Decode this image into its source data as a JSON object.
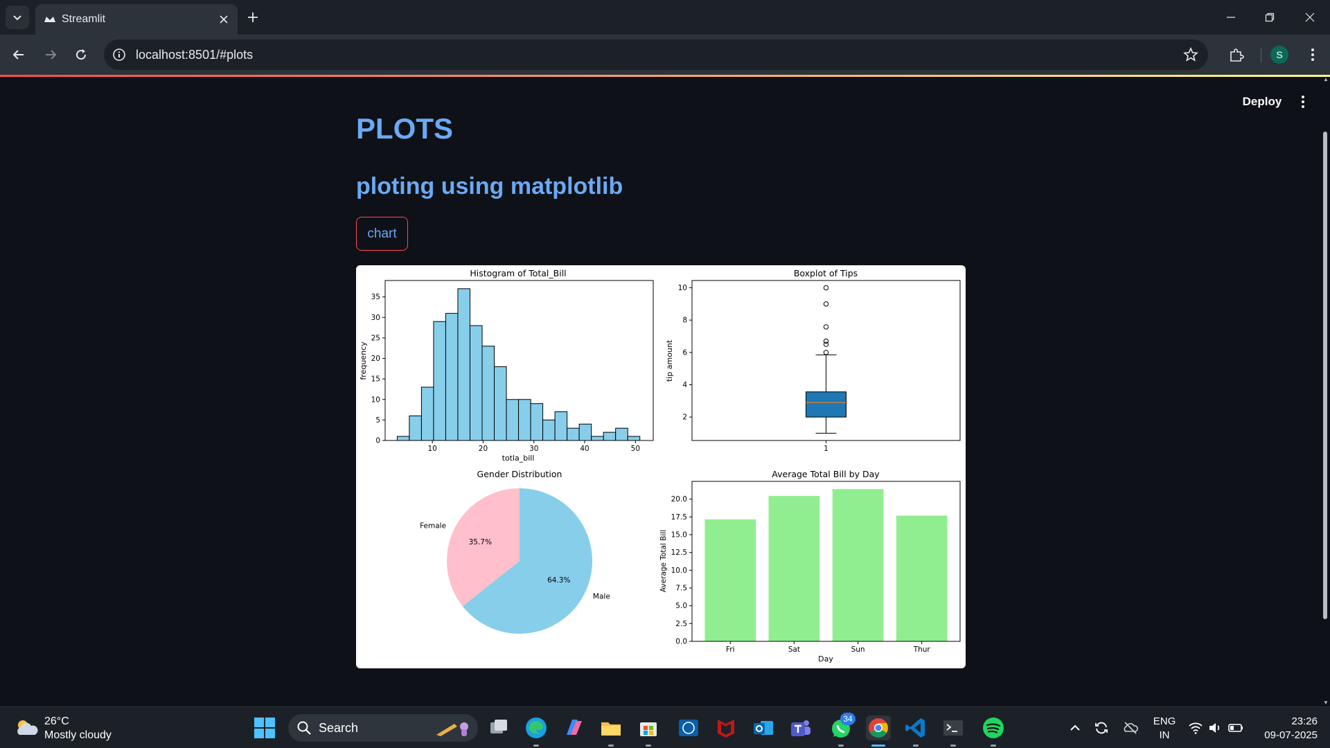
{
  "browser": {
    "tab_title": "Streamlit",
    "url": "localhost:8501/#plots",
    "profile_initial": "S"
  },
  "app": {
    "deploy_label": "Deploy",
    "title": "PLOTS",
    "subheader": "ploting using matplotlib",
    "button_label": "chart"
  },
  "chart_data": [
    {
      "type": "bar",
      "title": "Histogram of Total_Bill",
      "xlabel": "totla_bill",
      "ylabel": "frequency",
      "bins_start": 3.07,
      "bin_width": 2.39,
      "values": [
        1,
        6,
        13,
        29,
        31,
        37,
        28,
        23,
        18,
        10,
        10,
        9,
        5,
        7,
        3,
        4,
        1,
        2,
        3,
        1
      ],
      "xlim": [
        0.7,
        53.5
      ],
      "ylim": [
        0,
        39
      ],
      "xticks": [
        10,
        20,
        30,
        40,
        50
      ],
      "yticks": [
        0,
        5,
        10,
        15,
        20,
        25,
        30,
        35
      ],
      "color": "#87ceeb"
    },
    {
      "type": "box",
      "title": "Boxplot of Tips",
      "xlabel": "",
      "ylabel": "tip amount",
      "category": "1",
      "whisker_low": 1.0,
      "q1": 2.0,
      "median": 2.9,
      "q3": 3.56,
      "whisker_high": 5.85,
      "outliers": [
        6.0,
        6.5,
        6.7,
        7.58,
        9.0,
        10.0
      ],
      "ylim": [
        0.55,
        10.45
      ],
      "yticks": [
        2,
        4,
        6,
        8,
        10
      ],
      "box_color": "#1f77b4",
      "median_color": "#ff7f0e"
    },
    {
      "type": "pie",
      "title": "Gender Distribution",
      "slices": [
        {
          "label": "Female",
          "value": 35.7,
          "pct_label": "35.7%",
          "color": "#ffc0cb"
        },
        {
          "label": "Male",
          "value": 64.3,
          "pct_label": "64.3%",
          "color": "#87ceeb"
        }
      ]
    },
    {
      "type": "bar",
      "title": "Average Total Bill by Day",
      "xlabel": "Day",
      "ylabel": "Average Total Bill",
      "categories": [
        "Fri",
        "Sat",
        "Sun",
        "Thur"
      ],
      "values": [
        17.15,
        20.44,
        21.41,
        17.68
      ],
      "ylim": [
        0,
        22.5
      ],
      "yticks": [
        "0.0",
        "2.5",
        "5.0",
        "7.5",
        "10.0",
        "12.5",
        "15.0",
        "17.5",
        "20.0"
      ],
      "color": "#90ee90"
    }
  ],
  "taskbar": {
    "temperature": "26°C",
    "weather": "Mostly cloudy",
    "search_label": "Search",
    "whatsapp_badge": "34",
    "lang_line1": "ENG",
    "lang_line2": "IN",
    "time": "23:26",
    "date": "09-07-2025"
  }
}
